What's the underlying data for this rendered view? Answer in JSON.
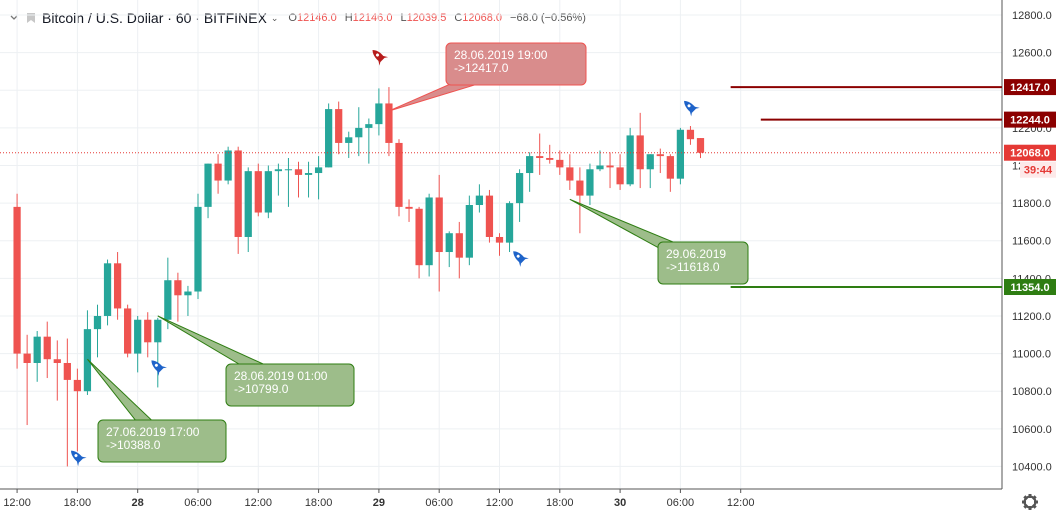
{
  "symbol": {
    "title": "Bitcoin / U.S. Dollar · 60 · BITFINEX",
    "caret": "⌄"
  },
  "ohlc": {
    "o_label": "O",
    "o": "12146.0",
    "h_label": "H",
    "h": "12146.0",
    "l_label": "L",
    "l": "12039.5",
    "c_label": "C",
    "c": "12068.0",
    "change": "−68.0 (−0.56%)"
  },
  "colors": {
    "bull": "#26a69a",
    "bear": "#ef5350",
    "resistance": "#8b0000",
    "support": "#2e7d12",
    "callout_red_fill": "#d98c8c",
    "callout_green_fill": "#9dbd8a",
    "price_line": "#e53935",
    "rocket_blue": "#1e63c9",
    "rocket_red": "#b71c1c"
  },
  "icons": [
    "settings-gear-icon",
    "rocket-icon",
    "chevron-down-icon"
  ],
  "chart_data": {
    "type": "candlestick",
    "y_range": [
      10280,
      12880
    ],
    "x_range": [
      -1.7,
      98
    ],
    "grid": true,
    "y_ticks": [
      10400,
      10600,
      10800,
      11000,
      11200,
      11400,
      11600,
      11800,
      12000,
      12200,
      12400,
      12600,
      12800
    ],
    "y_tick_labels": [
      "10400.0",
      "10600.0",
      "10800.0",
      "11000.0",
      "11200.0",
      "11400.0",
      "11600.0",
      "11800.0",
      "12000.0",
      "12200.0",
      "12400.0",
      "12600.0",
      "12800.0"
    ],
    "x_ticks": [
      {
        "index": 0,
        "label": "12:00",
        "bold": false
      },
      {
        "index": 6,
        "label": "18:00",
        "bold": false
      },
      {
        "index": 12,
        "label": "28",
        "bold": true
      },
      {
        "index": 18,
        "label": "06:00",
        "bold": false
      },
      {
        "index": 24,
        "label": "12:00",
        "bold": false
      },
      {
        "index": 30,
        "label": "18:00",
        "bold": false
      },
      {
        "index": 36,
        "label": "29",
        "bold": true
      },
      {
        "index": 42,
        "label": "06:00",
        "bold": false
      },
      {
        "index": 48,
        "label": "12:00",
        "bold": false
      },
      {
        "index": 54,
        "label": "18:00",
        "bold": false
      },
      {
        "index": 60,
        "label": "30",
        "bold": true
      },
      {
        "index": 66,
        "label": "06:00",
        "bold": false
      },
      {
        "index": 72,
        "label": "12:00",
        "bold": false
      }
    ],
    "candles": [
      [
        11780,
        11850,
        10920,
        11000
      ],
      [
        11000,
        11100,
        10620,
        10950
      ],
      [
        10950,
        11120,
        10850,
        11090
      ],
      [
        11090,
        11170,
        10870,
        10970
      ],
      [
        10970,
        11070,
        10750,
        10950
      ],
      [
        10950,
        11080,
        10400,
        10860
      ],
      [
        10860,
        10920,
        10480,
        10800
      ],
      [
        10800,
        11230,
        10780,
        11130
      ],
      [
        11130,
        11260,
        10980,
        11200
      ],
      [
        11200,
        11500,
        11150,
        11480
      ],
      [
        11480,
        11540,
        11180,
        11240
      ],
      [
        11240,
        11260,
        10980,
        11000
      ],
      [
        11000,
        11200,
        10900,
        11180
      ],
      [
        11180,
        11220,
        10980,
        11060
      ],
      [
        11060,
        11190,
        10820,
        11180
      ],
      [
        11180,
        11510,
        11130,
        11390
      ],
      [
        11390,
        11430,
        11170,
        11310
      ],
      [
        11310,
        11360,
        11200,
        11330
      ],
      [
        11330,
        11850,
        11290,
        11780
      ],
      [
        11780,
        12010,
        11720,
        12010
      ],
      [
        12010,
        12060,
        11850,
        11920
      ],
      [
        11920,
        12100,
        11900,
        12080
      ],
      [
        12080,
        12100,
        11530,
        11620
      ],
      [
        11620,
        11990,
        11540,
        11970
      ],
      [
        11970,
        12010,
        11730,
        11750
      ],
      [
        11750,
        12000,
        11720,
        11970
      ],
      [
        11970,
        12010,
        11840,
        11980
      ],
      [
        11980,
        12040,
        11780,
        11980
      ],
      [
        11980,
        12020,
        11830,
        11950
      ],
      [
        11950,
        12020,
        11830,
        11960
      ],
      [
        11960,
        12050,
        11820,
        11990
      ],
      [
        11990,
        12330,
        11990,
        12300
      ],
      [
        12300,
        12340,
        12060,
        12120
      ],
      [
        12120,
        12180,
        12040,
        12150
      ],
      [
        12150,
        12310,
        12050,
        12200
      ],
      [
        12200,
        12250,
        12010,
        12220
      ],
      [
        12220,
        12410,
        12160,
        12330
      ],
      [
        12330,
        12417,
        12050,
        12120
      ],
      [
        12120,
        12140,
        11730,
        11780
      ],
      [
        11780,
        11820,
        11700,
        11770
      ],
      [
        11770,
        11780,
        11400,
        11470
      ],
      [
        11470,
        11850,
        11410,
        11830
      ],
      [
        11830,
        11950,
        11330,
        11540
      ],
      [
        11540,
        11650,
        11460,
        11640
      ],
      [
        11640,
        11700,
        11400,
        11510
      ],
      [
        11510,
        11840,
        11470,
        11790
      ],
      [
        11790,
        11900,
        11750,
        11840
      ],
      [
        11840,
        11870,
        11590,
        11620
      ],
      [
        11620,
        11640,
        11520,
        11590
      ],
      [
        11590,
        11810,
        11540,
        11800
      ],
      [
        11800,
        11980,
        11700,
        11960
      ],
      [
        11960,
        12070,
        11860,
        12050
      ],
      [
        12050,
        12170,
        11950,
        12040
      ],
      [
        12040,
        12110,
        12010,
        12030
      ],
      [
        12030,
        12080,
        11950,
        11990
      ],
      [
        11990,
        12060,
        11870,
        11920
      ],
      [
        11920,
        11990,
        11640,
        11840
      ],
      [
        11840,
        12010,
        11790,
        11980
      ],
      [
        11980,
        12080,
        11970,
        12000
      ],
      [
        12000,
        12070,
        11880,
        11990
      ],
      [
        11990,
        12060,
        11870,
        11900
      ],
      [
        11900,
        12200,
        11890,
        12160
      ],
      [
        12160,
        12280,
        11880,
        11980
      ],
      [
        11980,
        12060,
        11880,
        12060
      ],
      [
        12060,
        12090,
        11960,
        12050
      ],
      [
        12050,
        12060,
        11860,
        11930
      ],
      [
        11930,
        12200,
        11900,
        12190
      ],
      [
        12190,
        12210,
        12110,
        12140
      ],
      [
        12146,
        12146,
        12039.5,
        12068
      ]
    ],
    "annotations": [
      {
        "type": "callout",
        "color": "red",
        "lines": [
          "28.06.2019 19:00",
          "->12417.0"
        ],
        "anchor_index": 37,
        "anchor_price": 12290
      },
      {
        "type": "callout",
        "color": "green",
        "lines": [
          "28.06.2019 01:00",
          "->10799.0"
        ],
        "anchor_index": 14,
        "anchor_price": 11200
      },
      {
        "type": "callout",
        "color": "green",
        "lines": [
          "27.06.2019 17:00",
          "->10388.0"
        ],
        "anchor_index": 7,
        "anchor_price": 10970
      },
      {
        "type": "callout",
        "color": "green",
        "lines": [
          "29.06.2019",
          "->11618.0"
        ],
        "anchor_index": 55,
        "anchor_price": 11820
      }
    ],
    "rockets": [
      {
        "index": 36,
        "price": 12580,
        "color": "red"
      },
      {
        "index": 67,
        "price": 12310,
        "color": "blue"
      },
      {
        "index": 6,
        "price": 10450,
        "color": "blue"
      },
      {
        "index": 14,
        "price": 10930,
        "color": "blue"
      },
      {
        "index": 50,
        "price": 11510,
        "color": "blue"
      }
    ],
    "levels": [
      {
        "price": 12417.0,
        "label": "12417.0",
        "color": "resistance",
        "from_index": 71
      },
      {
        "price": 12244.0,
        "label": "12244.0",
        "color": "resistance",
        "from_index": 74
      },
      {
        "price": 11354.0,
        "label": "11354.0",
        "color": "support",
        "from_index": 71
      }
    ],
    "last_price": {
      "price": 12068.0,
      "label": "12068.0",
      "countdown": "39:44"
    }
  }
}
